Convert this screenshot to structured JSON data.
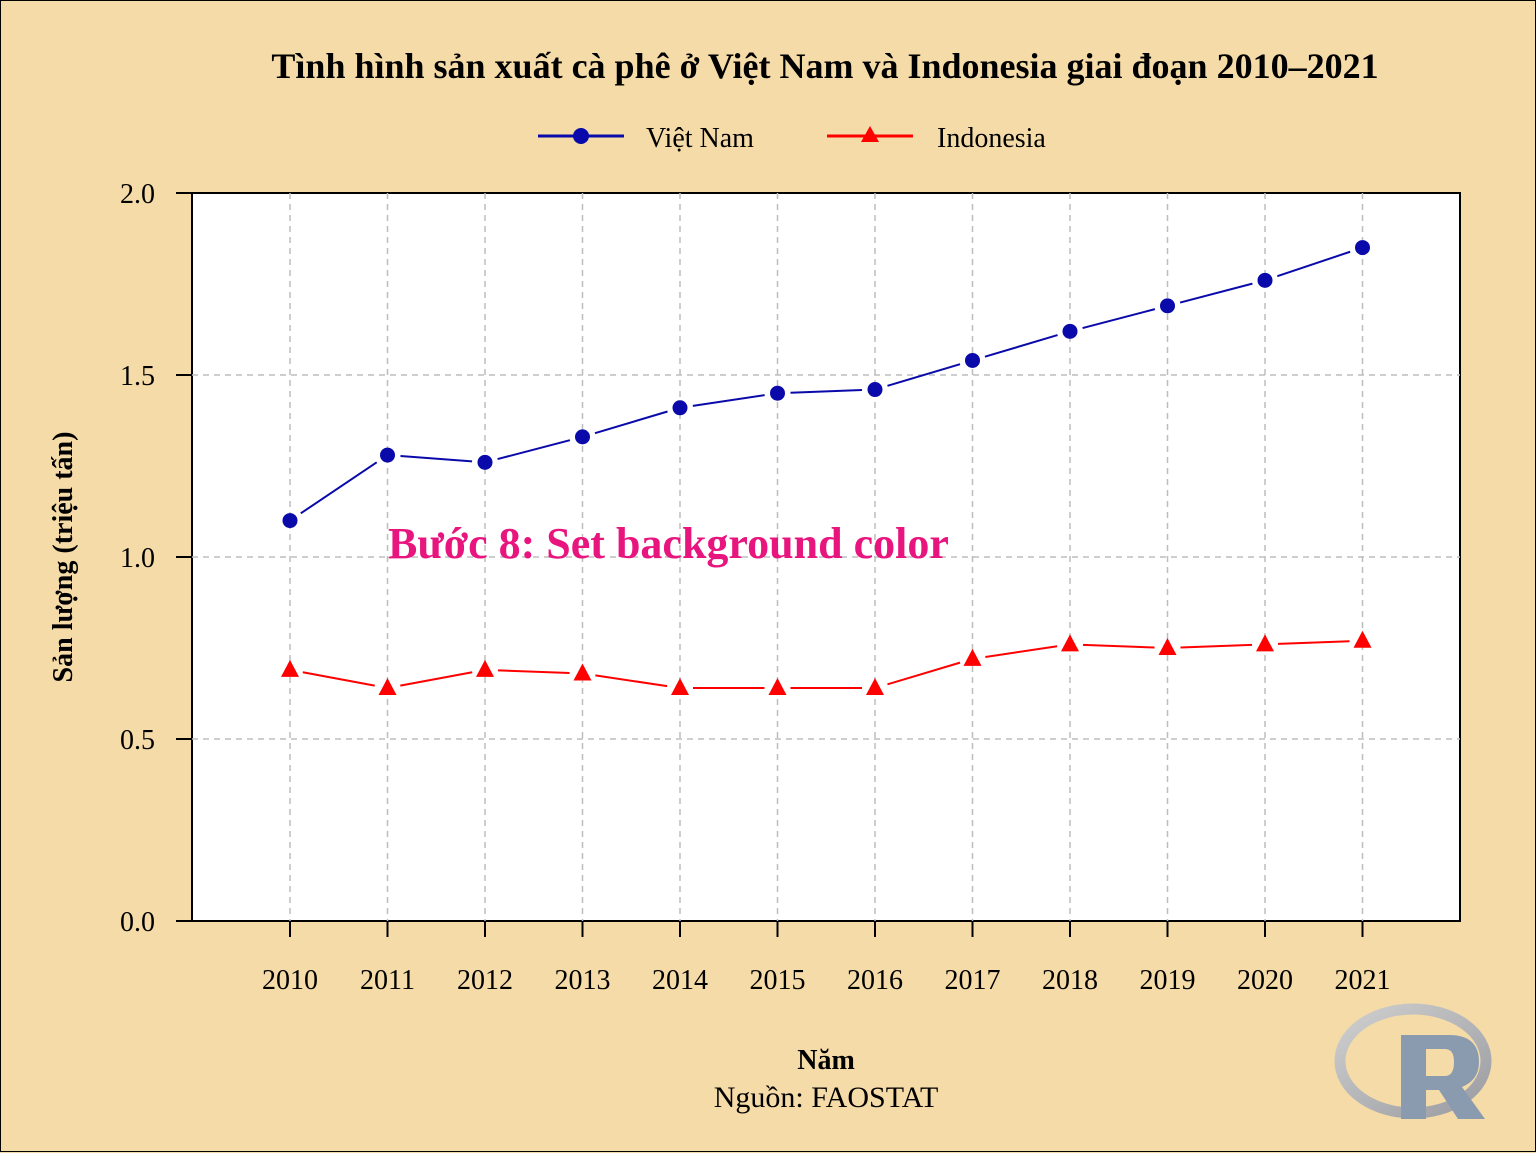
{
  "chart_data": {
    "type": "line",
    "title": "Tình hình sản xuất cà phê ở Việt Nam và Indonesia giai đoạn 2010–2021",
    "xlabel": "Năm",
    "ylabel": "Sản lượng (triệu tấn)",
    "caption": "Nguồn: FAOSTAT",
    "annotation": "Bước 8: Set background color",
    "x": [
      2010,
      2011,
      2012,
      2013,
      2014,
      2015,
      2016,
      2017,
      2018,
      2019,
      2020,
      2021
    ],
    "ylim": [
      0,
      2
    ],
    "yticks": [
      "0.0",
      "0.5",
      "1.0",
      "1.5",
      "2.0"
    ],
    "grid": true,
    "legend_position": "top",
    "series": [
      {
        "name": "Việt Nam",
        "marker": "circle",
        "color": "#0a0aaa",
        "values": [
          1.1,
          1.28,
          1.26,
          1.33,
          1.41,
          1.45,
          1.46,
          1.54,
          1.62,
          1.69,
          1.76,
          1.85
        ]
      },
      {
        "name": "Indonesia",
        "marker": "triangle",
        "color": "#ff0000",
        "values": [
          0.69,
          0.64,
          0.69,
          0.68,
          0.64,
          0.64,
          0.64,
          0.72,
          0.76,
          0.75,
          0.76,
          0.77
        ]
      }
    ],
    "annotation_color": "#e8157f",
    "plot_background": "#ffffff",
    "page_background": "#f5dba7",
    "logo": "R-logo"
  }
}
